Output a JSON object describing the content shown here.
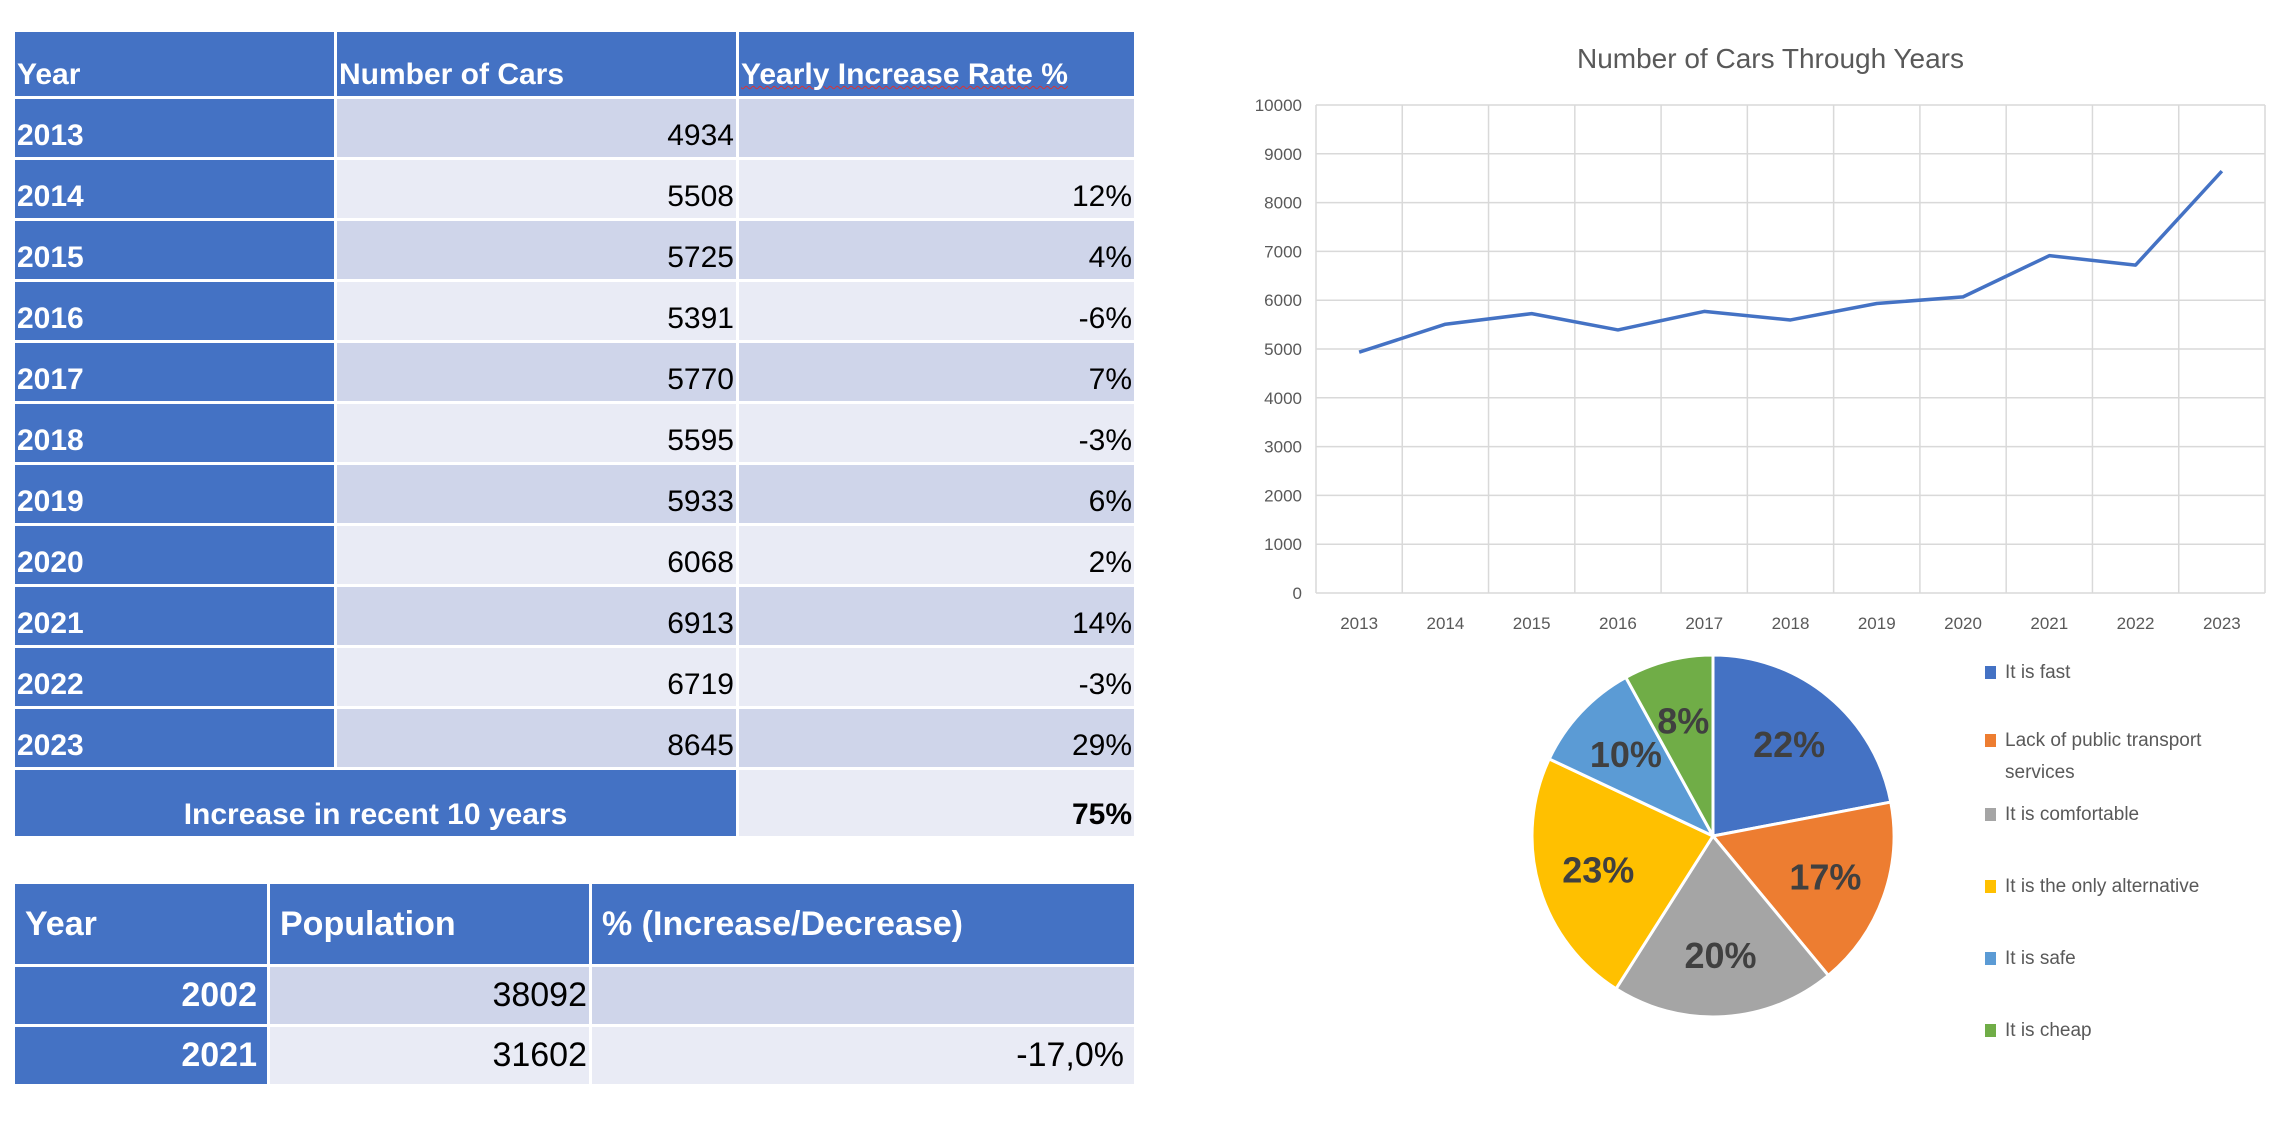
{
  "table1": {
    "headers": [
      "Year",
      "Number of Cars",
      "Yearly Increase Rate %"
    ],
    "rows": [
      {
        "year": "2013",
        "cars": "4934",
        "rate": ""
      },
      {
        "year": "2014",
        "cars": "5508",
        "rate": "12%"
      },
      {
        "year": "2015",
        "cars": "5725",
        "rate": "4%"
      },
      {
        "year": "2016",
        "cars": "5391",
        "rate": "-6%"
      },
      {
        "year": "2017",
        "cars": "5770",
        "rate": "7%"
      },
      {
        "year": "2018",
        "cars": "5595",
        "rate": "-3%"
      },
      {
        "year": "2019",
        "cars": "5933",
        "rate": "6%"
      },
      {
        "year": "2020",
        "cars": "6068",
        "rate": "2%"
      },
      {
        "year": "2021",
        "cars": "6913",
        "rate": "14%"
      },
      {
        "year": "2022",
        "cars": "6719",
        "rate": "-3%"
      },
      {
        "year": "2023",
        "cars": "8645",
        "rate": "29%"
      }
    ],
    "total_label": "Increase in recent 10 years",
    "total_value": "75%"
  },
  "table2": {
    "headers": [
      "Year",
      "Population",
      "% (Increase/Decrease)"
    ],
    "rows": [
      {
        "year": "2002",
        "population": "38092",
        "change": ""
      },
      {
        "year": "2021",
        "population": "31602",
        "change": "-17,0%"
      }
    ]
  },
  "chart_data": [
    {
      "type": "line",
      "title": "Number of Cars Through Years",
      "categories": [
        "2013",
        "2014",
        "2015",
        "2016",
        "2017",
        "2018",
        "2019",
        "2020",
        "2021",
        "2022",
        "2023"
      ],
      "values": [
        4934,
        5508,
        5725,
        5391,
        5770,
        5595,
        5933,
        6068,
        6913,
        6719,
        8645
      ],
      "ylim": [
        0,
        10000
      ],
      "yticks": [
        "0",
        "1000",
        "2000",
        "3000",
        "4000",
        "5000",
        "6000",
        "7000",
        "8000",
        "9000",
        "10000"
      ],
      "grid": true,
      "color": "#4472c4"
    },
    {
      "type": "pie",
      "labels": [
        "It is fast",
        "Lack of public transport services",
        "It is comfortable",
        "It is the only alternative",
        "It is safe",
        "It is cheap"
      ],
      "values": [
        22,
        17,
        20,
        23,
        10,
        8
      ],
      "data_labels": [
        "22%",
        "17%",
        "20%",
        "23%",
        "10%",
        "8%"
      ],
      "colors": [
        "#4472c4",
        "#ed7d31",
        "#a5a5a5",
        "#ffc000",
        "#5b9bd5",
        "#70ad47"
      ],
      "legend": "right"
    }
  ]
}
